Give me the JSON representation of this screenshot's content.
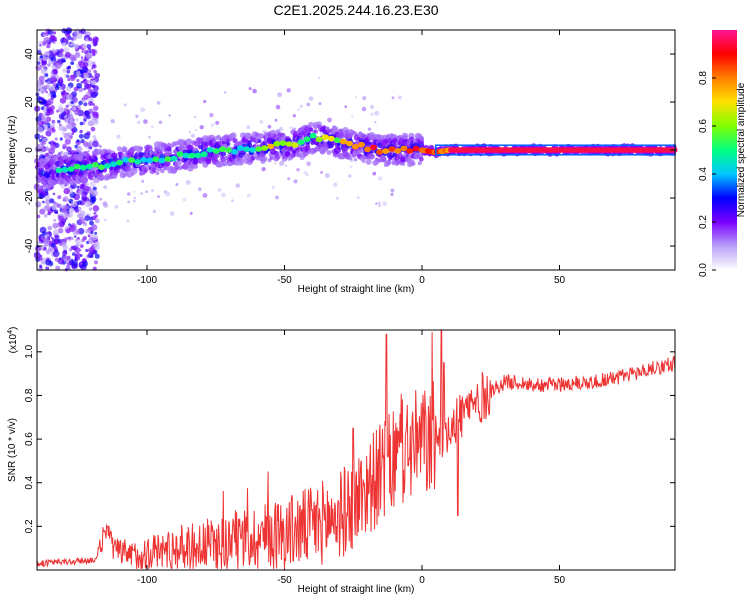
{
  "title": "C2E1.2025.244.16.23.E30",
  "spectrogram": {
    "type": "heatmap",
    "xlabel": "Height of straight line (km)",
    "ylabel": "Frequency (Hz)",
    "xlim": [
      -140,
      92
    ],
    "ylim": [
      -50,
      50
    ],
    "xticks": [
      -100,
      -50,
      0,
      50
    ],
    "yticks": [
      -40,
      -20,
      0,
      20,
      40
    ],
    "ridge": {
      "x": [
        -140,
        -130,
        -120,
        -110,
        -100,
        -90,
        -80,
        -70,
        -60,
        -50,
        -45,
        -40,
        -35,
        -30,
        -25,
        -20,
        -15,
        -10,
        -5,
        0,
        5,
        10,
        20,
        40,
        60,
        92
      ],
      "y": [
        -10,
        -8,
        -7,
        -5,
        -4,
        -3,
        -1,
        0,
        1,
        2,
        3,
        5,
        5,
        3,
        2,
        1,
        0,
        0,
        0,
        0,
        -1,
        0,
        0,
        0,
        0,
        0
      ]
    }
  },
  "colorbar": {
    "label": "Normalized spectral amplitude",
    "ticks": [
      "0.0",
      "0.2",
      "0.4",
      "0.6",
      "0.8"
    ],
    "tick_values": [
      0.0,
      0.2,
      0.4,
      0.6,
      0.8
    ],
    "range": [
      0,
      1
    ],
    "colors": [
      "#ffffff",
      "#b8a0f8",
      "#7a00ff",
      "#0000ff",
      "#00c8ff",
      "#00ff80",
      "#80ff00",
      "#ffe000",
      "#ff8000",
      "#ff0000",
      "#ff1493"
    ]
  },
  "snr": {
    "type": "line",
    "xlabel": "Height of straight line (km)",
    "ylabel": "SNR (10 * v/v)",
    "multiplier": "(x10",
    "multiplier_exp": "4",
    "multiplier_close": ")",
    "xlim": [
      -140,
      92
    ],
    "ylim": [
      0,
      1.1
    ],
    "xticks": [
      -100,
      -50,
      0,
      50
    ],
    "yticks": [
      0.2,
      0.4,
      0.6,
      0.8,
      1.0
    ],
    "color": "#ee3333",
    "trend": {
      "x": [
        -140,
        -125,
        -118,
        -115,
        -112,
        -105,
        -100,
        -90,
        -80,
        -70,
        -60,
        -50,
        -40,
        -30,
        -25,
        -20,
        -15,
        -10,
        -5,
        0,
        5,
        10,
        15,
        20,
        25,
        30,
        35,
        40,
        50,
        60,
        70,
        80,
        92
      ],
      "y": [
        0.03,
        0.04,
        0.05,
        0.2,
        0.09,
        0.06,
        0.08,
        0.1,
        0.11,
        0.13,
        0.15,
        0.17,
        0.2,
        0.25,
        0.3,
        0.38,
        0.44,
        0.5,
        0.56,
        0.58,
        0.6,
        0.66,
        0.72,
        0.77,
        0.82,
        0.86,
        0.86,
        0.85,
        0.85,
        0.86,
        0.88,
        0.91,
        0.95
      ]
    },
    "spikes": [
      {
        "x": -13,
        "y": 1.08
      },
      {
        "x": 7,
        "y": 1.1
      },
      {
        "x": 8,
        "y": 0.95
      },
      {
        "x": 13,
        "y": 0.25
      },
      {
        "x": -25,
        "y": 0.65
      }
    ]
  }
}
